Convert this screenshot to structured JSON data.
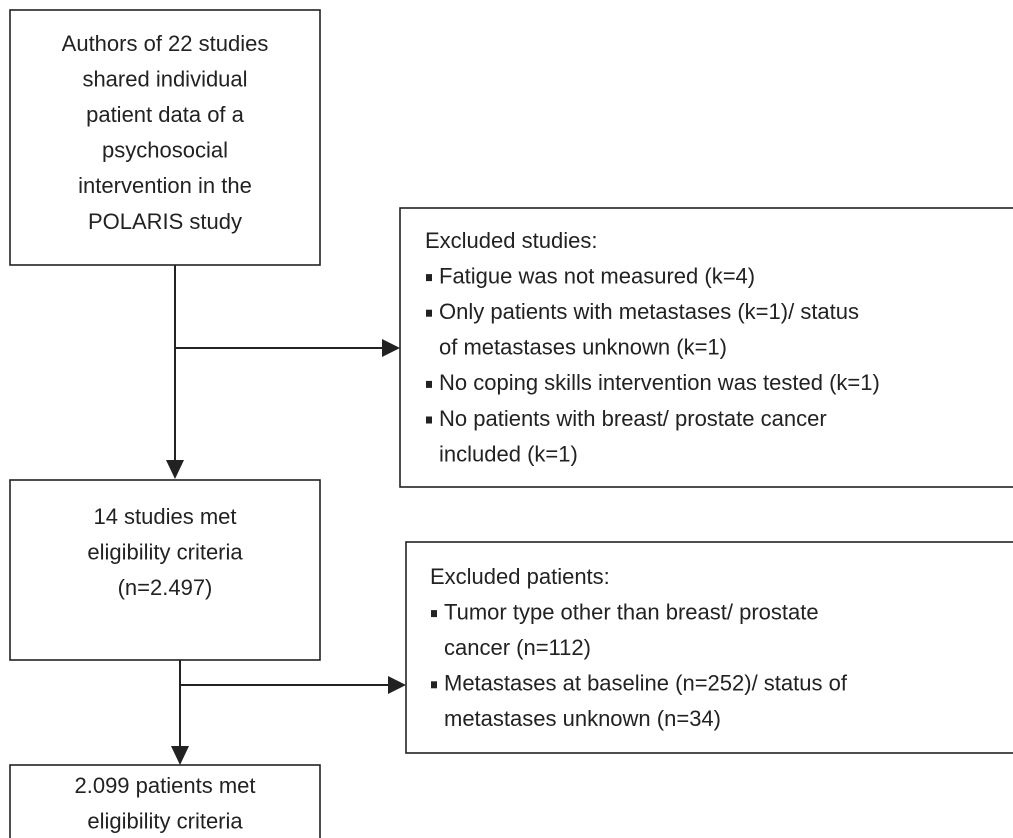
{
  "nodes": [
    {
      "lines": [
        "Authors of 22 studies",
        "shared individual",
        "patient data of a",
        "psychosocial",
        "intervention in the",
        "POLARIS study"
      ]
    },
    {
      "lines": [
        "14 studies met",
        "eligibility criteria",
        "(n=2.497)"
      ]
    },
    {
      "lines": [
        "2.099 patients met",
        "eligibility criteria"
      ]
    }
  ],
  "exclusions": [
    {
      "title": "Excluded studies:",
      "items": [
        [
          "Fatigue was not measured (k=4)"
        ],
        [
          "Only patients with metastases (k=1)/ status",
          "of metastases unknown (k=1)"
        ],
        [
          "No coping skills intervention was tested (k=1)"
        ],
        [
          "No patients with breast/ prostate cancer",
          "included (k=1)"
        ]
      ]
    },
    {
      "title": "Excluded patients:",
      "items": [
        [
          "Tumor type other than breast/ prostate",
          "cancer (n=112)"
        ],
        [
          "Metastases at baseline (n=252)/ status of",
          "metastases unknown (n=34)"
        ]
      ]
    }
  ]
}
